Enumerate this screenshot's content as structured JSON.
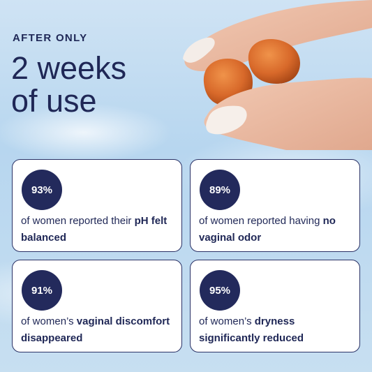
{
  "header": {
    "eyebrow": "AFTER ONLY",
    "headline_line1": "2 weeks",
    "headline_line2": "of use"
  },
  "stats": [
    {
      "value": "93%",
      "text": "of women reported their ",
      "bold": "pH felt balanced"
    },
    {
      "value": "89%",
      "text": "of women reported having ",
      "bold": "no vaginal odor"
    },
    {
      "value": "91%",
      "text": "of women’s ",
      "bold": "vaginal discomfort disappeared"
    },
    {
      "value": "95%",
      "text": "of women’s ",
      "bold": "dryness significantly reduced"
    }
  ],
  "colors": {
    "navy": "#232a5c",
    "gummy": "#d8692a",
    "sky": "#c2dcf0"
  }
}
